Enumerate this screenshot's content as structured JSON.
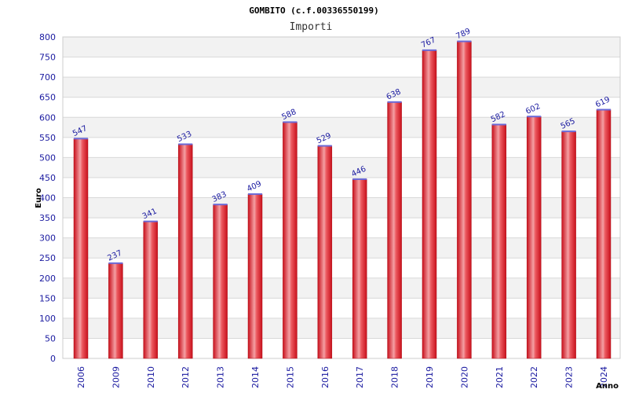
{
  "chart_data": {
    "type": "bar",
    "title": "GOMBITO (c.f.00336550199)",
    "subtitle": "Importi",
    "xlabel": "Anno",
    "ylabel": "Euro",
    "categories": [
      "2006",
      "2009",
      "2010",
      "2012",
      "2013",
      "2014",
      "2015",
      "2016",
      "2017",
      "2018",
      "2019",
      "2020",
      "2021",
      "2022",
      "2023",
      "2024"
    ],
    "values": [
      547,
      237,
      341,
      533,
      383,
      409,
      588,
      529,
      446,
      638,
      767,
      789,
      582,
      602,
      565,
      619
    ],
    "yticks": [
      "0",
      "50",
      "100",
      "150",
      "200",
      "250",
      "300",
      "350",
      "400",
      "450",
      "500",
      "550",
      "600",
      "650",
      "700",
      "750",
      "800"
    ],
    "ylim": [
      0,
      800
    ],
    "grid": true,
    "legend": "none",
    "colors": {
      "bar": "#e8202a",
      "bar_highlight": "#f4a0a4",
      "bar_cap": "#6a6ad8",
      "tick_text": "#1a1aa0",
      "band_alt": "#f2f2f2",
      "grid": "#d8d8d8"
    }
  }
}
